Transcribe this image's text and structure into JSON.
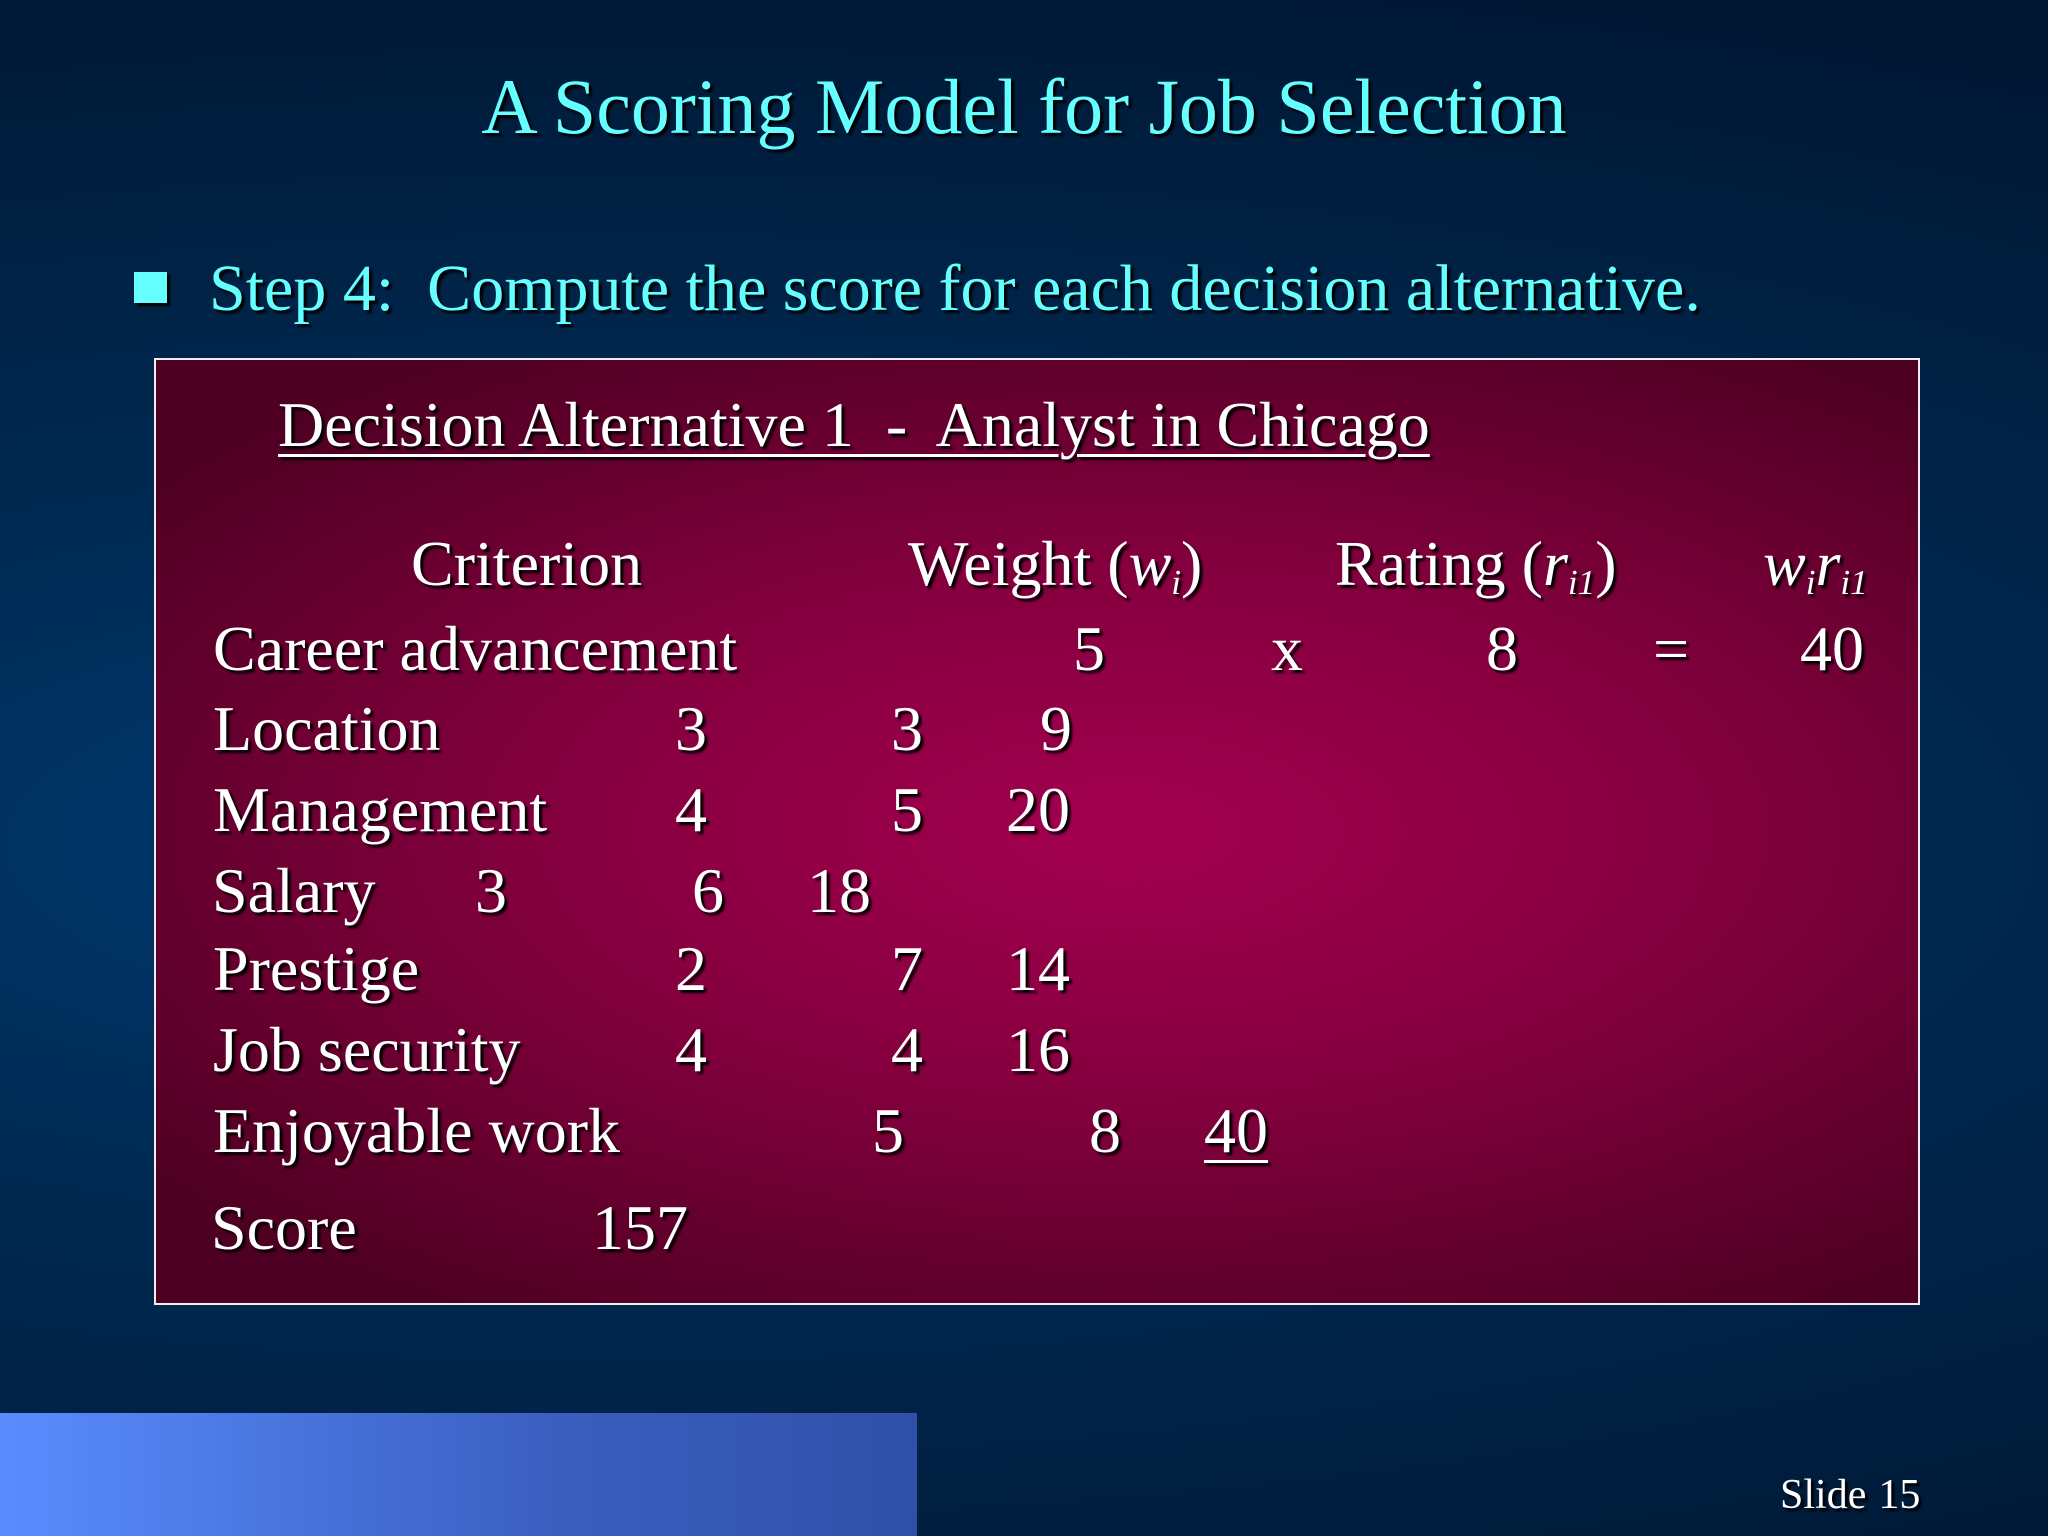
{
  "slide": {
    "title": "A Scoring Model for Job Selection",
    "bullet": "Step 4:  Compute the score for each decision alternative.",
    "colors": {
      "title": "#66ffff",
      "box": "#a3004f",
      "background": "#00284f",
      "footer_bar": "#5a8cff"
    },
    "table": {
      "heading": "Decision Alternative 1  -  Analyst in Chicago",
      "headers": {
        "criterion": "Criterion",
        "weight": "Weight (",
        "weight_var": "w",
        "weight_sub": "i",
        "weight_close": ")",
        "rating": "Rating (",
        "rating_var": "r",
        "rating_sub": "i1",
        "rating_close": ")",
        "product_w": "w",
        "product_w_sub": "i",
        "product_r": "r",
        "product_r_sub": "i1"
      },
      "example": {
        "weight": "5",
        "times": "x",
        "rating": "8",
        "equals": "=",
        "product": "40"
      },
      "rows": [
        {
          "criterion": "Career advancement"
        },
        {
          "criterion": "Location",
          "weight": "3",
          "rating": "3",
          "product": "9"
        },
        {
          "criterion": "Management",
          "weight": "4",
          "rating": "5",
          "product": "20"
        },
        {
          "criterion": "Salary",
          "weight": "3",
          "rating": "6",
          "product": "18"
        },
        {
          "criterion": "Prestige",
          "weight": "2",
          "rating": "7",
          "product": "14"
        },
        {
          "criterion": "Job security",
          "weight": "4",
          "rating": "4",
          "product": "16"
        },
        {
          "criterion": "Enjoyable work",
          "weight": "5",
          "rating": "8",
          "product": "40"
        }
      ],
      "score_label": "Score",
      "score_value": "157"
    },
    "footer": {
      "slide_label": "Slide",
      "slide_number": "15"
    }
  }
}
